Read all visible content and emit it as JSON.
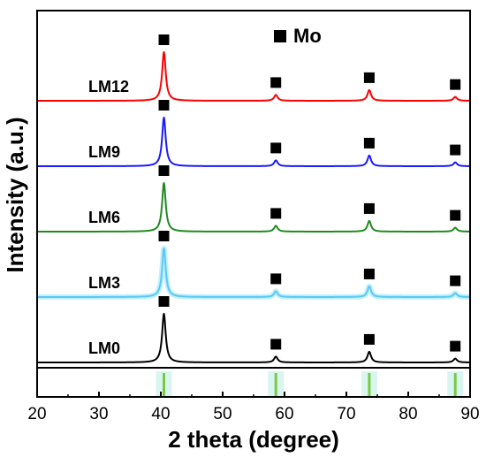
{
  "chart_data": {
    "type": "line",
    "xlabel": "2 theta (degree)",
    "ylabel": "Intensity (a.u.)",
    "xlim": [
      20,
      90
    ],
    "xticks": [
      20,
      30,
      40,
      50,
      60,
      70,
      80,
      90
    ],
    "y_ticks_shown": false,
    "legend": {
      "marker": "square",
      "label": "Mo",
      "position": "top-center"
    },
    "marker_color": "#000000",
    "reference_color": "#7ac943",
    "reference_peaks": [
      40.5,
      58.6,
      73.7,
      87.6
    ],
    "peaks": [
      40.5,
      58.6,
      73.7,
      87.6
    ],
    "relative_peak_heights": [
      1.0,
      0.12,
      0.22,
      0.08
    ],
    "series": [
      {
        "name": "LM12",
        "color": "#ff0000",
        "offset": 4
      },
      {
        "name": "LM9",
        "color": "#1a1aff",
        "offset": 3
      },
      {
        "name": "LM6",
        "color": "#1f8a1f",
        "offset": 2
      },
      {
        "name": "LM3",
        "color": "#5ec8f0",
        "offset": 1
      },
      {
        "name": "LM0",
        "color": "#000000",
        "offset": 0
      }
    ]
  }
}
